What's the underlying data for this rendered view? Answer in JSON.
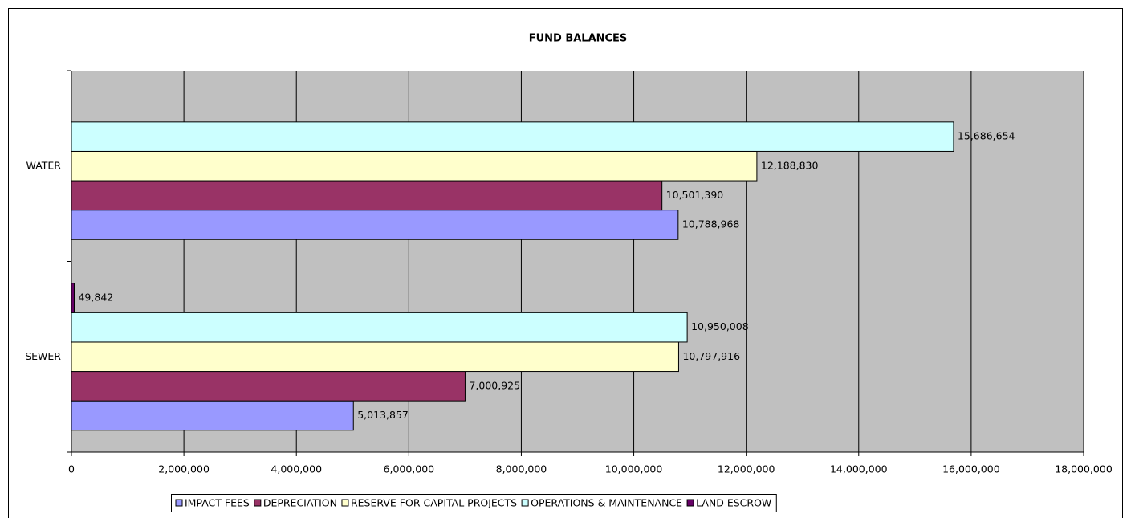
{
  "chart_data": {
    "type": "hbar",
    "title": "FUND BALANCES",
    "categories": [
      "WATER",
      "SEWER"
    ],
    "series": [
      {
        "name": "IMPACT FEES",
        "color": "#9999ff",
        "values": [
          10788968,
          5013857
        ],
        "value_labels": [
          "10,788,968",
          "5,013,857"
        ]
      },
      {
        "name": "DEPRECIATION",
        "color": "#993366",
        "values": [
          10501390,
          7000925
        ],
        "value_labels": [
          "10,501,390",
          "7,000,925"
        ]
      },
      {
        "name": "RESERVE FOR CAPITAL PROJECTS",
        "color": "#ffffcc",
        "values": [
          12188830,
          10797916
        ],
        "value_labels": [
          "12,188,830",
          "10,797,916"
        ]
      },
      {
        "name": "OPERATIONS & MAINTENANCE",
        "color": "#ccffff",
        "values": [
          15686654,
          10950008
        ],
        "value_labels": [
          "15,686,654",
          "10,950,008"
        ]
      },
      {
        "name": "LAND ESCROW",
        "color": "#660066",
        "values": [
          null,
          49842
        ],
        "value_labels": [
          null,
          "49,842"
        ]
      }
    ],
    "xlim": [
      0,
      18000000
    ],
    "xticks": [
      0,
      {
        "value": 2000000,
        "label": "2,000,000"
      },
      {
        "value": 4000000,
        "label": "4,000,000"
      },
      {
        "value": 6000000,
        "label": "6,000,000"
      },
      {
        "value": 8000000,
        "label": "8,000,000"
      },
      {
        "value": 10000000,
        "label": "10,000,000"
      },
      {
        "value": 12000000,
        "label": "12,000,000"
      },
      {
        "value": 14000000,
        "label": "14,000,000"
      },
      {
        "value": 16000000,
        "label": "16,000,000"
      },
      {
        "value": 18000000,
        "label": "18,000,000"
      }
    ],
    "grid": true,
    "legend": "bottom",
    "background": "#c0c0c0"
  }
}
